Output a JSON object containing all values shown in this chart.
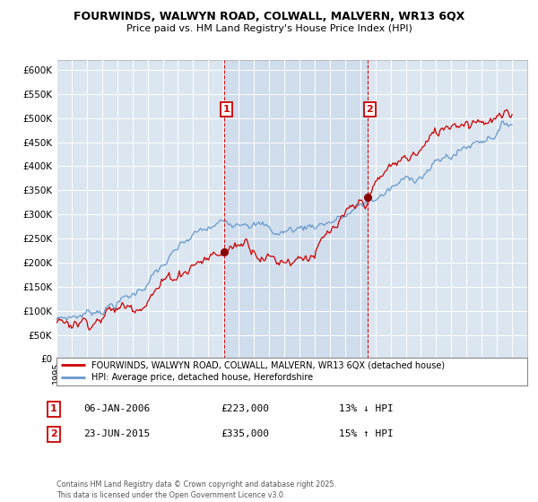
{
  "title": "FOURWINDS, WALWYN ROAD, COLWALL, MALVERN, WR13 6QX",
  "subtitle": "Price paid vs. HM Land Registry's House Price Index (HPI)",
  "legend_label_red": "FOURWINDS, WALWYN ROAD, COLWALL, MALVERN, WR13 6QX (detached house)",
  "legend_label_blue": "HPI: Average price, detached house, Herefordshire",
  "footnote": "Contains HM Land Registry data © Crown copyright and database right 2025.\nThis data is licensed under the Open Government Licence v3.0.",
  "sale1_date": "06-JAN-2006",
  "sale1_price": "£223,000",
  "sale1_hpi": "13% ↓ HPI",
  "sale2_date": "23-JUN-2015",
  "sale2_price": "£335,000",
  "sale2_hpi": "15% ↑ HPI",
  "sale1_year": 2006.03,
  "sale2_year": 2015.48,
  "sale1_value": 223000,
  "sale2_value": 335000,
  "color_red": "#cc0000",
  "color_blue": "#6699cc",
  "color_bg": "#dce6f0",
  "color_shade": "#cddcee",
  "color_grid": "#ffffff",
  "ylim_min": 0,
  "ylim_max": 620000,
  "xlim_min": 1995,
  "xlim_max": 2026
}
